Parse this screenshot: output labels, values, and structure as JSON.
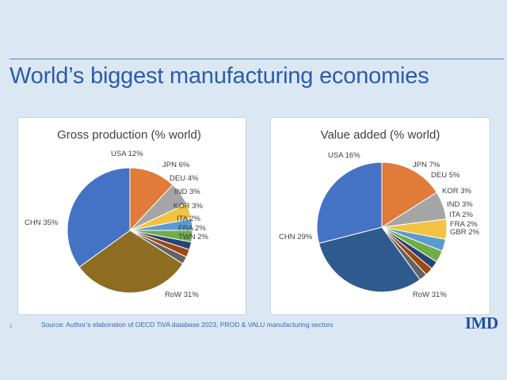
{
  "slide": {
    "title": "World’s biggest manufacturing economies",
    "source": "Source: Author’s elaboration of OECD   TiVA database 2023, PROD & VALU manufacturing sectors",
    "slide_number": "1",
    "logo": "IMD"
  },
  "chart_data": [
    {
      "type": "pie",
      "title": "Gross production  (% world)",
      "labels": [
        "USA 12%",
        "JPN 6%",
        "DEU 4%",
        "IND 3%",
        "KOR 3%",
        "ITA 2%",
        "FRA 2%",
        "TWN 2%",
        "RoW 31%",
        "CHN 35%"
      ],
      "categories": [
        "USA",
        "JPN",
        "DEU",
        "IND",
        "KOR",
        "ITA",
        "FRA",
        "TWN",
        "RoW",
        "CHN"
      ],
      "values": [
        12,
        6,
        4,
        3,
        3,
        2,
        2,
        2,
        31,
        35
      ],
      "colors": [
        "#e07b39",
        "#a5a5a5",
        "#f2c342",
        "#5a9bd5",
        "#70ad47",
        "#264478",
        "#9e480e",
        "#636363",
        "#8c6d22",
        "#4472c4"
      ],
      "legend": "none"
    },
    {
      "type": "pie",
      "title": "Value added (% world)",
      "labels": [
        "USA 16%",
        "JPN 7%",
        "DEU 5%",
        "KOR 3%",
        "IND 3%",
        "ITA 2%",
        "FRA 2%",
        "GBR 2%",
        "RoW 31%",
        "CHN 29%"
      ],
      "categories": [
        "USA",
        "JPN",
        "DEU",
        "KOR",
        "IND",
        "ITA",
        "FRA",
        "GBR",
        "RoW",
        "CHN"
      ],
      "values": [
        16,
        7,
        5,
        3,
        3,
        2,
        2,
        2,
        31,
        29
      ],
      "colors": [
        "#e07b39",
        "#a5a5a5",
        "#f2c342",
        "#5a9bd5",
        "#70ad47",
        "#264478",
        "#9e480e",
        "#636363",
        "#2e5a8e",
        "#4472c4"
      ],
      "legend": "none"
    }
  ]
}
